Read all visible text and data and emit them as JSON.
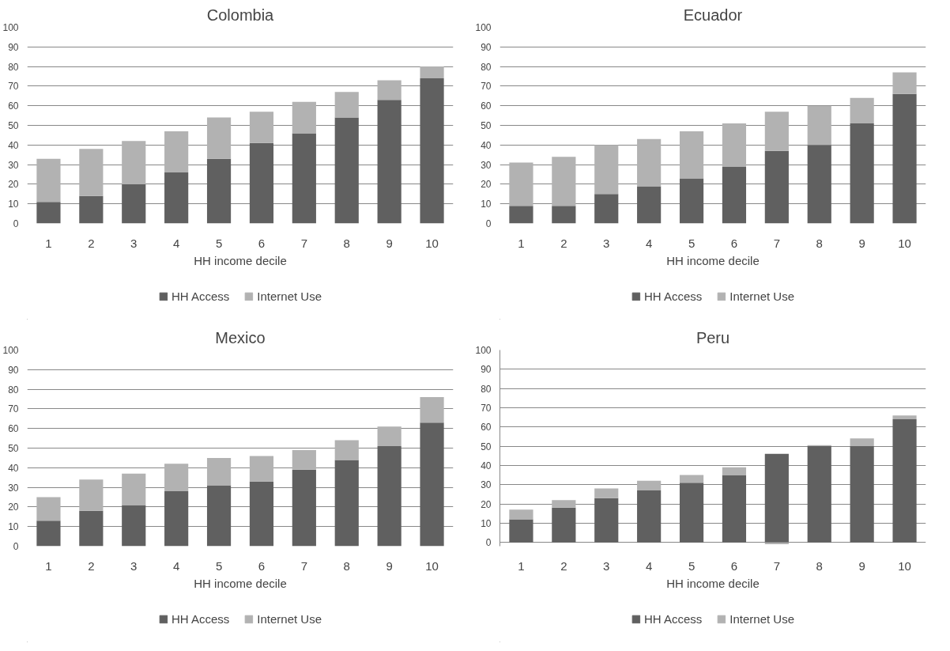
{
  "chart_data": [
    {
      "type": "bar",
      "stacked": true,
      "title": "Colombia",
      "xlabel": "HH income decile",
      "categories": [
        "1",
        "2",
        "3",
        "4",
        "5",
        "6",
        "7",
        "8",
        "9",
        "10"
      ],
      "ylim": [
        0,
        100
      ],
      "yticks": [
        0,
        10,
        20,
        30,
        40,
        50,
        60,
        70,
        80,
        90,
        100
      ],
      "grid": "y",
      "legend": "bottom",
      "series": [
        {
          "name": "HH Access",
          "color": "#606060",
          "values": [
            11,
            14,
            20,
            26,
            33,
            41,
            46,
            54,
            63,
            74
          ]
        },
        {
          "name": "Internet Use",
          "color": "#b2b2b2",
          "values": [
            22,
            24,
            22,
            21,
            21,
            16,
            16,
            13,
            10,
            6
          ]
        }
      ]
    },
    {
      "type": "bar",
      "stacked": true,
      "title": "Ecuador",
      "xlabel": "HH income decile",
      "categories": [
        "1",
        "2",
        "3",
        "4",
        "5",
        "6",
        "7",
        "8",
        "9",
        "10"
      ],
      "ylim": [
        0,
        100
      ],
      "yticks": [
        0,
        10,
        20,
        30,
        40,
        50,
        60,
        70,
        80,
        90,
        100
      ],
      "grid": "y",
      "legend": "bottom",
      "series": [
        {
          "name": "HH Access",
          "color": "#606060",
          "values": [
            9,
            9,
            15,
            19,
            23,
            29,
            37,
            40,
            51,
            66
          ]
        },
        {
          "name": "Internet Use",
          "color": "#b2b2b2",
          "values": [
            22,
            25,
            25,
            24,
            24,
            22,
            20,
            20,
            13,
            11
          ]
        }
      ]
    },
    {
      "type": "bar",
      "stacked": true,
      "title": "Mexico",
      "xlabel": "HH income decile",
      "categories": [
        "1",
        "2",
        "3",
        "4",
        "5",
        "6",
        "7",
        "8",
        "9",
        "10"
      ],
      "ylim": [
        0,
        100
      ],
      "yticks": [
        0,
        10,
        20,
        30,
        40,
        50,
        60,
        70,
        80,
        90,
        100
      ],
      "grid": "y",
      "legend": "bottom",
      "series": [
        {
          "name": "HH Access",
          "color": "#606060",
          "values": [
            13,
            18,
            21,
            28,
            31,
            33,
            39,
            44,
            51,
            63
          ]
        },
        {
          "name": "Internet Use",
          "color": "#b2b2b2",
          "values": [
            12,
            16,
            16,
            14,
            14,
            13,
            10,
            10,
            10,
            13
          ]
        }
      ]
    },
    {
      "type": "bar",
      "stacked": true,
      "title": "Peru",
      "xlabel": "HH income decile",
      "categories": [
        "1",
        "2",
        "3",
        "4",
        "5",
        "6",
        "7",
        "8",
        "9",
        "10"
      ],
      "ylim": [
        -2,
        100
      ],
      "yticks": [
        0,
        10,
        20,
        30,
        40,
        50,
        60,
        70,
        80,
        90,
        100
      ],
      "grid": "y",
      "legend": "bottom",
      "series": [
        {
          "name": "HH Access",
          "color": "#606060",
          "values": [
            12,
            18,
            23,
            27,
            31,
            35,
            46,
            50,
            50,
            64
          ]
        },
        {
          "name": "Internet Use",
          "color": "#b2b2b2",
          "values": [
            5,
            4,
            5,
            5,
            4,
            4,
            -1,
            0.5,
            4,
            2
          ]
        }
      ]
    }
  ]
}
